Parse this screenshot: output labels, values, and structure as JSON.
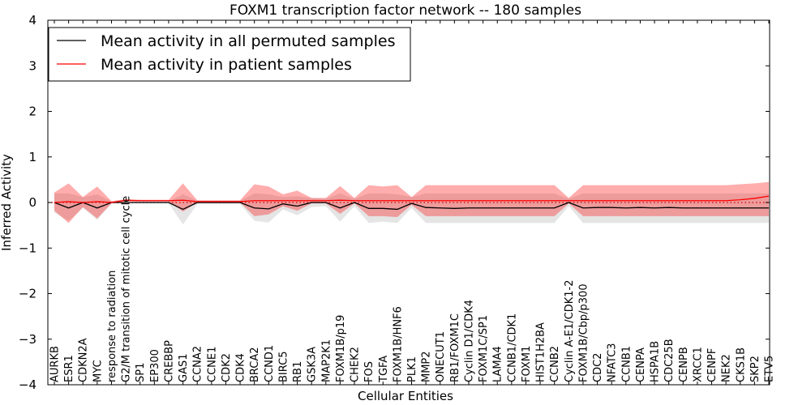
{
  "chart_data": {
    "type": "line",
    "title": "FOXM1 transcription factor network -- 180 samples",
    "xlabel": "Cellular Entities",
    "ylabel": "Inferred Activity",
    "ylim": [
      -4,
      4
    ],
    "yticks": [
      -4,
      -3,
      -2,
      -1,
      0,
      1,
      2,
      3,
      4
    ],
    "ytick_labels": [
      "−4",
      "−3",
      "−2",
      "−1",
      "0",
      "1",
      "2",
      "3",
      "4"
    ],
    "grid": false,
    "legend_position": "top-left",
    "categories": [
      "AURKB",
      "ESR1",
      "CDKN2A",
      "MYC",
      "response to radiation",
      "G2/M transition of mitotic cell cycle",
      "SP1",
      "EP300",
      "CREBBP",
      "GAS1",
      "CCNA2",
      "CCNE1",
      "CDK2",
      "CDK4",
      "BRCA2",
      "CCND1",
      "BIRC5",
      "RB1",
      "GSK3A",
      "MAP2K1",
      "FOXM1B/p19",
      "CHEK2",
      "FOS",
      "TGFA",
      "FOXM1B/HNF6",
      "PLK1",
      "MMP2",
      "ONECUT1",
      "RB1/FOXM1C",
      "Cyclin D1/CDK4",
      "FOXM1C/SP1",
      "LAMA4",
      "CCNB1/CDK1",
      "FOXM1",
      "HIST1H2BA",
      "CCNB2",
      "Cyclin A-E1/CDK1-2",
      "FOXM1B/Cbp/p300",
      "CDC2",
      "NFATC3",
      "CCNB1",
      "CENPA",
      "HSPA1B",
      "CDC25B",
      "CENPB",
      "XRCC1",
      "CENPF",
      "NEK2",
      "CKS1B",
      "SKP2",
      "ETV5"
    ],
    "series": [
      {
        "name": "Mean activity in all permuted samples",
        "color": "#000000",
        "values": [
          0,
          -0.12,
          0,
          -0.12,
          0,
          0,
          0,
          0,
          0,
          -0.15,
          0,
          0,
          0,
          0,
          -0.12,
          -0.14,
          -0.03,
          -0.08,
          0,
          0,
          -0.12,
          0,
          -0.13,
          -0.13,
          -0.15,
          -0.02,
          -0.11,
          -0.12,
          -0.13,
          -0.12,
          -0.12,
          -0.12,
          -0.12,
          -0.12,
          -0.12,
          -0.12,
          0,
          -0.12,
          -0.11,
          -0.11,
          -0.12,
          -0.11,
          -0.12,
          -0.11,
          -0.12,
          -0.12,
          -0.12,
          -0.12,
          -0.12,
          -0.12,
          -0.12
        ],
        "band_lower": [
          -0.22,
          -0.4,
          -0.12,
          -0.38,
          -0.02,
          -0.02,
          -0.02,
          -0.02,
          -0.02,
          -0.48,
          -0.04,
          -0.04,
          -0.04,
          -0.04,
          -0.4,
          -0.44,
          -0.15,
          -0.28,
          -0.1,
          -0.08,
          -0.42,
          -0.08,
          -0.45,
          -0.42,
          -0.45,
          -0.12,
          -0.45,
          -0.45,
          -0.45,
          -0.45,
          -0.45,
          -0.45,
          -0.45,
          -0.45,
          -0.45,
          -0.45,
          -0.08,
          -0.45,
          -0.45,
          -0.45,
          -0.45,
          -0.45,
          -0.45,
          -0.45,
          -0.45,
          -0.45,
          -0.45,
          -0.45,
          -0.45,
          -0.45,
          -0.45
        ],
        "band_upper": [
          0.2,
          0.2,
          0.12,
          0.18,
          0.02,
          0.02,
          0.02,
          0.02,
          0.02,
          0.18,
          0.04,
          0.04,
          0.04,
          0.04,
          0.2,
          0.18,
          0.12,
          0.14,
          0.1,
          0.08,
          0.2,
          0.08,
          0.2,
          0.2,
          0.18,
          0.12,
          0.2,
          0.2,
          0.2,
          0.2,
          0.2,
          0.2,
          0.2,
          0.2,
          0.2,
          0.2,
          0.08,
          0.2,
          0.2,
          0.2,
          0.2,
          0.2,
          0.2,
          0.2,
          0.2,
          0.2,
          0.2,
          0.2,
          0.2,
          0.2,
          0.2
        ]
      },
      {
        "name": "Mean activity in patient samples",
        "color": "#ff0000",
        "values": [
          0,
          0.02,
          0,
          0.02,
          0,
          0.05,
          0.04,
          0.04,
          0.04,
          0.05,
          0.02,
          0.02,
          0.02,
          0.02,
          0.04,
          0.04,
          0.04,
          0.04,
          0.04,
          0.04,
          0.05,
          0.04,
          0.04,
          0.04,
          0.04,
          0.04,
          0.04,
          0.04,
          0.04,
          0.04,
          0.04,
          0.04,
          0.04,
          0.04,
          0.04,
          0.04,
          0.04,
          0.04,
          0.04,
          0.04,
          0.04,
          0.04,
          0.04,
          0.04,
          0.04,
          0.04,
          0.04,
          0.04,
          0.06,
          0.09,
          0.14
        ],
        "band_lower": [
          -0.18,
          -0.45,
          -0.1,
          -0.35,
          -0.02,
          0.02,
          0.02,
          0.02,
          0.02,
          -0.2,
          0.0,
          0.0,
          0.0,
          0.0,
          -0.3,
          -0.26,
          -0.08,
          -0.18,
          -0.02,
          -0.02,
          -0.25,
          -0.02,
          -0.3,
          -0.3,
          -0.32,
          -0.05,
          -0.3,
          -0.3,
          -0.3,
          -0.3,
          -0.3,
          -0.3,
          -0.3,
          -0.3,
          -0.3,
          -0.3,
          -0.02,
          -0.3,
          -0.3,
          -0.3,
          -0.3,
          -0.3,
          -0.3,
          -0.3,
          -0.3,
          -0.3,
          -0.3,
          -0.3,
          -0.3,
          -0.3,
          -0.3
        ],
        "band_upper": [
          0.22,
          0.42,
          0.12,
          0.35,
          0.03,
          0.07,
          0.06,
          0.06,
          0.06,
          0.42,
          0.05,
          0.05,
          0.05,
          0.05,
          0.4,
          0.35,
          0.18,
          0.26,
          0.1,
          0.1,
          0.36,
          0.1,
          0.38,
          0.35,
          0.38,
          0.12,
          0.38,
          0.38,
          0.38,
          0.38,
          0.38,
          0.38,
          0.38,
          0.38,
          0.38,
          0.38,
          0.1,
          0.38,
          0.38,
          0.38,
          0.38,
          0.38,
          0.38,
          0.38,
          0.38,
          0.38,
          0.38,
          0.38,
          0.4,
          0.42,
          0.45
        ]
      }
    ],
    "reference_line": {
      "y": 0,
      "style": "dotted",
      "color": "#cc0000"
    }
  }
}
